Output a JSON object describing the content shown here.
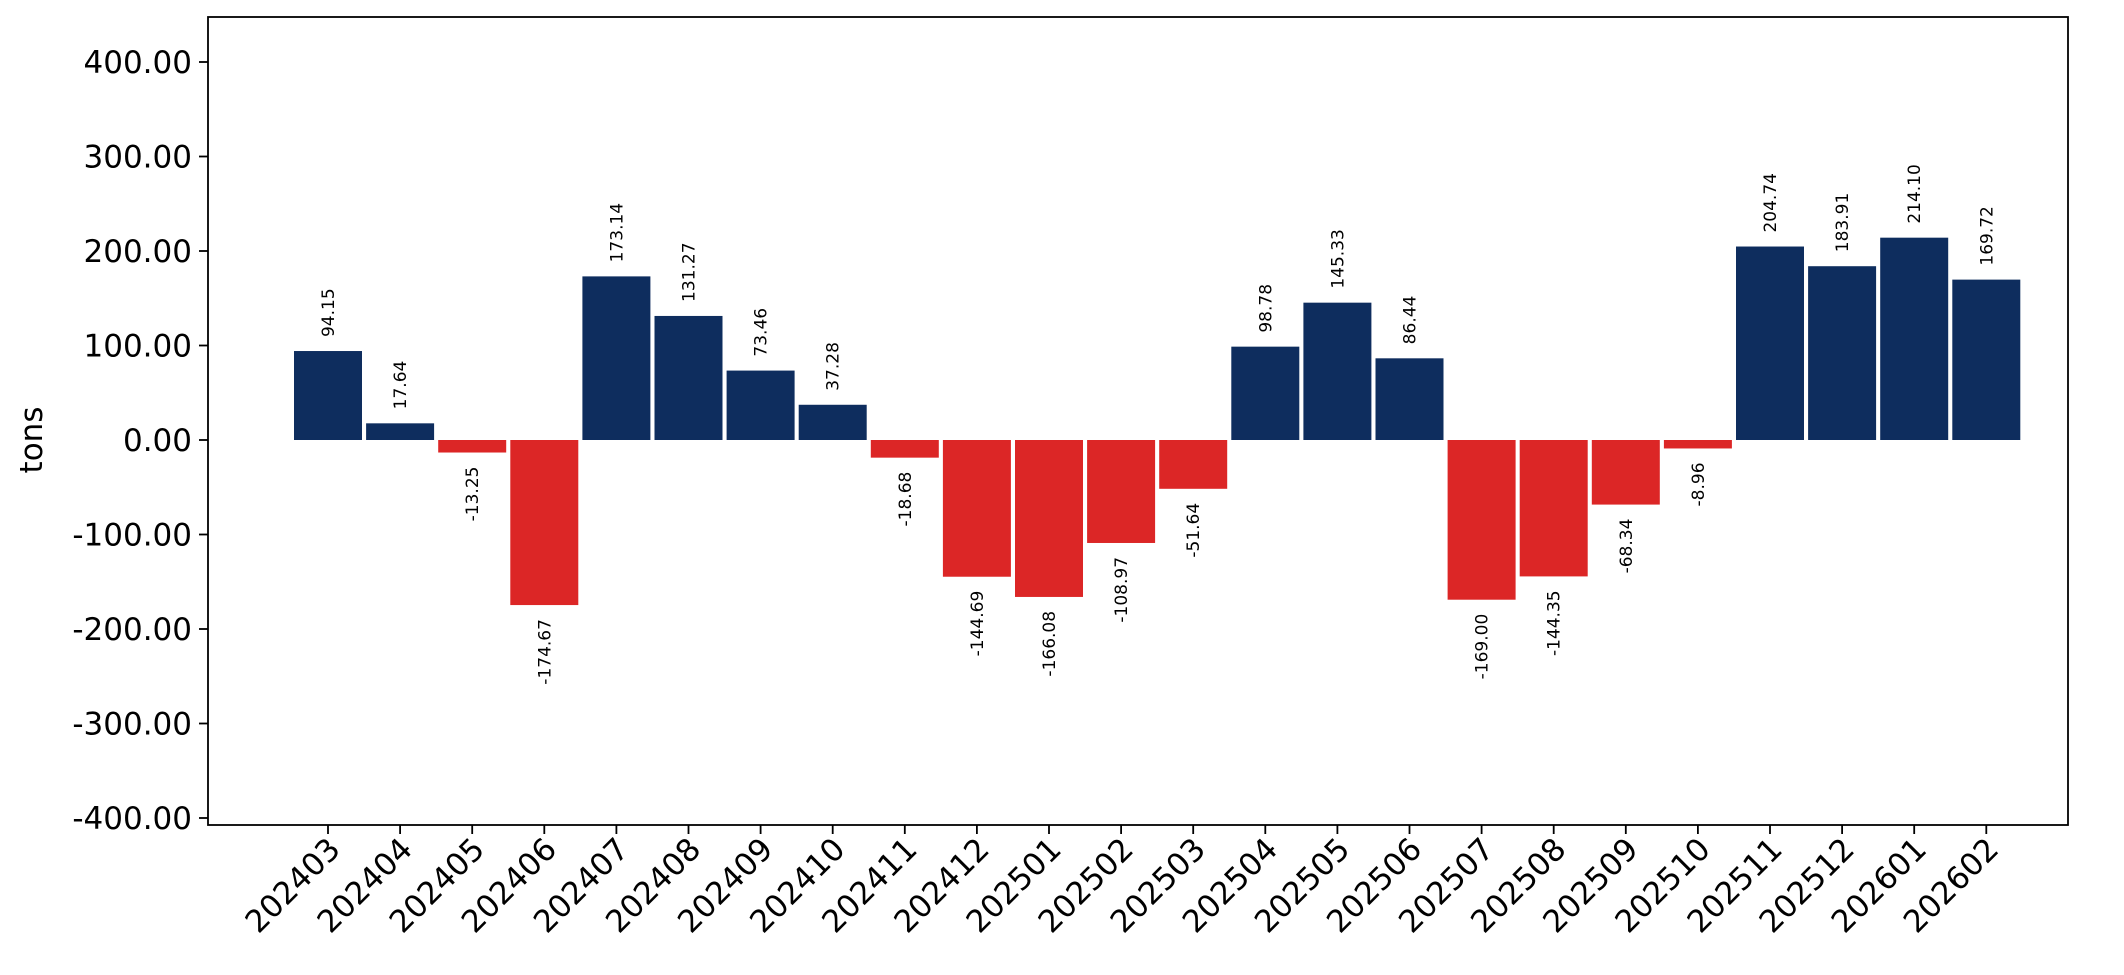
{
  "chart_data": {
    "type": "bar",
    "ylabel": "tons",
    "ylim": [
      -400,
      400
    ],
    "yticks": [
      400,
      300,
      200,
      100,
      0,
      -100,
      -200,
      -300,
      -400
    ],
    "ytick_labels": [
      "400.00",
      "300.00",
      "200.00",
      "100.00",
      "0.00",
      "-100.00",
      "-200.00",
      "-300.00",
      "-400.00"
    ],
    "categories": [
      "202403",
      "202404",
      "202405",
      "202406",
      "202407",
      "202408",
      "202409",
      "202410",
      "202411",
      "202412",
      "202501",
      "202502",
      "202503",
      "202504",
      "202505",
      "202506",
      "202507",
      "202508",
      "202509",
      "202510",
      "202511",
      "202512",
      "202601",
      "202602"
    ],
    "values": [
      94.15,
      17.64,
      -13.25,
      -174.67,
      173.14,
      131.27,
      73.46,
      37.28,
      -18.68,
      -144.69,
      -166.08,
      -108.97,
      -51.64,
      98.78,
      145.33,
      86.44,
      -169.0,
      -144.35,
      -68.34,
      -8.96,
      204.74,
      183.91,
      214.1,
      169.72
    ],
    "data_labels": [
      "94.15",
      "17.64",
      "-13.25",
      "-174.67",
      "173.14",
      "131.27",
      "73.46",
      "37.28",
      "-18.68",
      "-144.69",
      "-166.08",
      "-108.97",
      "-51.64",
      "98.78",
      "145.33",
      "86.44",
      "-169.00",
      "-144.35",
      "-68.34",
      "-8.96",
      "204.74",
      "183.91",
      "214.10",
      "169.72"
    ],
    "colors": {
      "positive": "#0e2d5e",
      "negative": "#dc2626"
    },
    "grid": false,
    "legend": "none"
  }
}
